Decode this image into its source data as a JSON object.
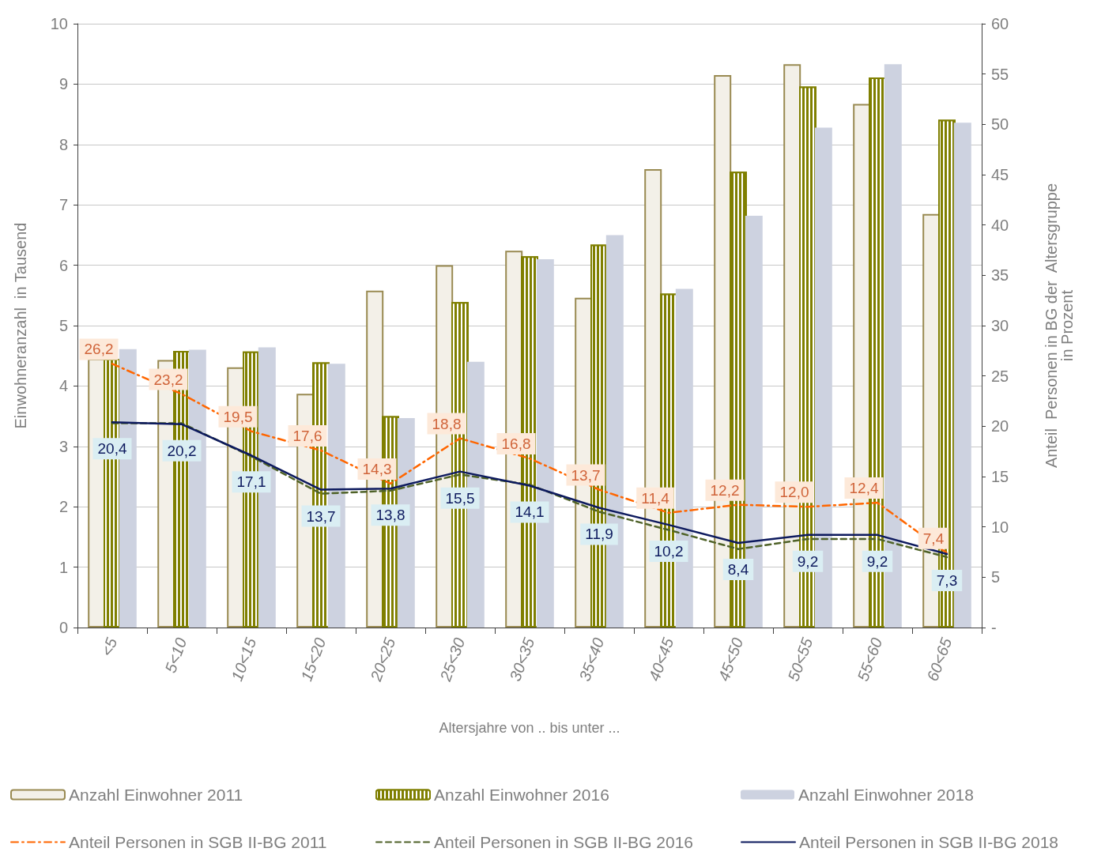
{
  "chart_data": {
    "type": "bar",
    "xlabel": "Altersjahre von .. bis unter ...",
    "ylabel": "Einwohneranzahl  in Tausend",
    "y2label": "Anteil  Personen in BG der  Altersgruppe\nin Prozent",
    "categories": [
      "<5",
      "5<10",
      "10<15",
      "15<20",
      "20<25",
      "25<30",
      "30<35",
      "35<40",
      "40<45",
      "45<50",
      "50<55",
      "55<60",
      "60<65"
    ],
    "series": [
      {
        "name": "Anzahl Einwohner 2011",
        "color": "#f3f0e8",
        "values": [
          4.45,
          4.43,
          4.31,
          3.87,
          5.58,
          6.0,
          6.24,
          5.46,
          7.59,
          9.15,
          9.33,
          8.67,
          6.85
        ]
      },
      {
        "name": "Anzahl Einwohner 2016",
        "color": "#7f7f00",
        "values": [
          4.45,
          4.58,
          4.57,
          4.39,
          3.5,
          5.39,
          6.15,
          6.34,
          5.53,
          7.55,
          8.96,
          9.11,
          8.41
        ]
      },
      {
        "name": "Anzahl Einwohner 2018",
        "color": "#cdd2e0",
        "values": [
          4.61,
          4.6,
          4.64,
          4.37,
          3.47,
          4.4,
          6.1,
          6.5,
          5.61,
          6.82,
          8.28,
          9.33,
          8.36
        ]
      },
      {
        "name": "Anteil Personen in SGB II-BG 2011",
        "type": "line",
        "axis": "y2",
        "color": "#ff6600",
        "line_style": "dashdot",
        "values": [
          26.2,
          23.2,
          19.5,
          17.6,
          14.3,
          18.8,
          16.8,
          13.7,
          11.4,
          12.2,
          12.0,
          12.4,
          7.4
        ],
        "value_labels": [
          "26,2",
          "23,2",
          "19,5",
          "17,6",
          "14,3",
          "18,8",
          "16,8",
          "13,7",
          "11,4",
          "12,2",
          "12,0",
          "12,4",
          "7,4"
        ]
      },
      {
        "name": "Anteil Personen in SGB II-BG 2016",
        "type": "line",
        "axis": "y2",
        "color": "#4f6228",
        "line_style": "dashed",
        "values": [
          20.3,
          20.3,
          17.0,
          13.3,
          13.6,
          15.2,
          14.2,
          11.5,
          9.7,
          7.8,
          8.8,
          8.8,
          7.0
        ]
      },
      {
        "name": "Anteil Personen in SGB II-BG 2018",
        "type": "line",
        "axis": "y2",
        "color": "#0d1a5e",
        "line_style": "solid",
        "values": [
          20.4,
          20.2,
          17.1,
          13.7,
          13.8,
          15.5,
          14.1,
          11.9,
          10.2,
          8.4,
          9.2,
          9.2,
          7.3
        ],
        "value_labels": [
          "20,4",
          "20,2",
          "17,1",
          "13,7",
          "13,8",
          "15,5",
          "14,1",
          "11,9",
          "10,2",
          "8,4",
          "9,2",
          "9,2",
          "7,3"
        ]
      }
    ],
    "ylim": [
      0,
      10
    ],
    "yticks": [
      0,
      1,
      2,
      3,
      4,
      5,
      6,
      7,
      8,
      9,
      10
    ],
    "y2lim": [
      0,
      60
    ],
    "y2ticks": [
      {
        "value": 0,
        "label": "-"
      },
      5,
      10,
      15,
      20,
      25,
      30,
      35,
      40,
      45,
      50,
      55,
      60
    ],
    "grid": "y",
    "legend": "bottom",
    "marker": "none"
  }
}
